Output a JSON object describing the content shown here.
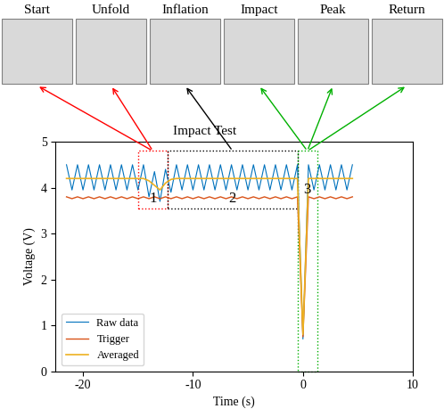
{
  "chart_data": {
    "type": "line",
    "xlabel": "Time (s)",
    "ylabel": "Voltage (V)",
    "xlim": [
      -22.5,
      10
    ],
    "xticks": [
      -20,
      -10,
      0,
      10
    ],
    "ylim": [
      0,
      5
    ],
    "yticks": [
      0,
      1,
      2,
      3,
      4,
      5
    ],
    "grid": false,
    "legend": "lower left",
    "x": [
      -21.5,
      -21,
      -20.5,
      -20,
      -19.5,
      -19,
      -18.5,
      -18,
      -17.5,
      -17,
      -16.5,
      -16,
      -15.5,
      -15,
      -14.5,
      -14,
      -13.5,
      -13,
      -12.5,
      -12,
      -11.5,
      -11,
      -10.5,
      -10,
      -9.5,
      -9,
      -8.5,
      -8,
      -7.5,
      -7,
      -6.5,
      -6,
      -5.5,
      -5,
      -4.5,
      -4,
      -3.5,
      -3,
      -2.5,
      -2,
      -1.5,
      -1,
      -0.5,
      0,
      0.5,
      1,
      1.5,
      2,
      2.5,
      3,
      3.5,
      4,
      4.5
    ],
    "series": [
      {
        "name": "Raw data",
        "color": "#0072BD",
        "values": [
          4.5,
          3.95,
          4.5,
          3.95,
          4.5,
          3.95,
          4.5,
          3.95,
          4.5,
          3.95,
          4.5,
          3.95,
          4.5,
          3.95,
          4.5,
          3.8,
          4.35,
          3.7,
          4.4,
          3.9,
          4.5,
          3.95,
          4.5,
          3.95,
          4.5,
          3.95,
          4.5,
          3.95,
          4.5,
          3.95,
          4.5,
          3.95,
          4.5,
          3.95,
          4.5,
          3.95,
          4.5,
          3.95,
          4.5,
          3.95,
          4.5,
          3.95,
          4.5,
          0.7,
          4.5,
          3.95,
          4.5,
          3.95,
          4.5,
          3.95,
          4.5,
          3.95,
          4.5
        ]
      },
      {
        "name": "Trigger",
        "color": "#D95319",
        "values": [
          3.8,
          3.76,
          3.8,
          3.76,
          3.8,
          3.76,
          3.8,
          3.76,
          3.8,
          3.76,
          3.8,
          3.76,
          3.8,
          3.76,
          3.8,
          3.76,
          3.8,
          3.76,
          3.8,
          3.76,
          3.8,
          3.76,
          3.8,
          3.76,
          3.8,
          3.76,
          3.8,
          3.76,
          3.8,
          3.76,
          3.8,
          3.76,
          3.8,
          3.76,
          3.8,
          3.76,
          3.8,
          3.76,
          3.8,
          3.76,
          3.8,
          3.76,
          3.8,
          0.75,
          3.8,
          3.76,
          3.8,
          3.76,
          3.8,
          3.76,
          3.8,
          3.76,
          3.8
        ]
      },
      {
        "name": "Averaged",
        "color": "#EDB120",
        "values": [
          4.2,
          4.2,
          4.2,
          4.2,
          4.2,
          4.2,
          4.2,
          4.2,
          4.2,
          4.2,
          4.2,
          4.2,
          4.2,
          4.2,
          4.2,
          4.15,
          4.05,
          3.95,
          4.1,
          4.18,
          4.2,
          4.2,
          4.2,
          4.2,
          4.2,
          4.2,
          4.2,
          4.2,
          4.2,
          4.2,
          4.2,
          4.2,
          4.2,
          4.2,
          4.2,
          4.2,
          4.2,
          4.2,
          4.2,
          4.2,
          4.2,
          4.2,
          4.2,
          0.8,
          4.2,
          4.2,
          4.2,
          4.2,
          4.2,
          4.2,
          4.2,
          4.2,
          4.2
        ]
      }
    ],
    "regions": [
      {
        "label": "1",
        "color": "red",
        "xlim": [
          -15,
          -12.3
        ],
        "ylim": [
          3.55,
          4.8
        ]
      },
      {
        "label": "2",
        "color": "black",
        "xlim": [
          -12.3,
          -0.5
        ],
        "ylim": [
          3.55,
          4.8
        ]
      },
      {
        "label": "3",
        "color": "#00B000",
        "xlim": [
          -0.5,
          1.3
        ],
        "ylim": [
          0,
          4.8
        ]
      }
    ],
    "annotation": {
      "text": "Impact Test",
      "region": "2"
    },
    "stages": [
      {
        "label": "Start",
        "region": "1"
      },
      {
        "label": "Unfold",
        "region": "1"
      },
      {
        "label": "Inflation",
        "region": "2"
      },
      {
        "label": "Impact",
        "region": "3"
      },
      {
        "label": "Peak",
        "region": "3"
      },
      {
        "label": "Return",
        "region": "3"
      }
    ]
  }
}
